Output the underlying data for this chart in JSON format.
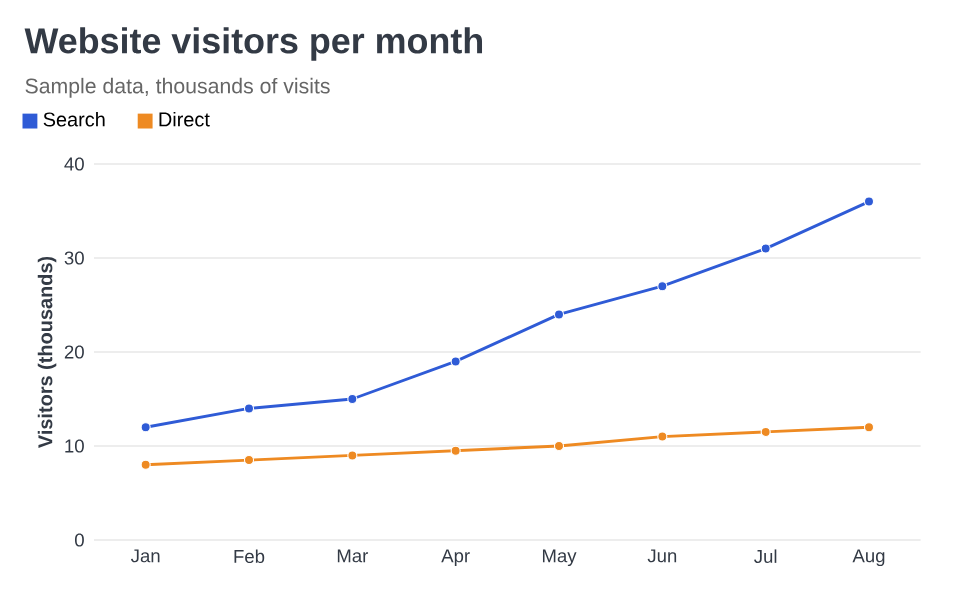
{
  "chart_data": {
    "type": "line",
    "title": "Website visitors per month",
    "subtitle": "Sample data, thousands of visits",
    "ylabel": "Visitors (thousands)",
    "categories": [
      "Jan",
      "Feb",
      "Mar",
      "Apr",
      "May",
      "Jun",
      "Jul",
      "Aug"
    ],
    "series": [
      {
        "name": "Search",
        "color": "#2f5bd6",
        "values": [
          12,
          14,
          15,
          19,
          24,
          27,
          31,
          36
        ]
      },
      {
        "name": "Direct",
        "color": "#ee8a22",
        "values": [
          8,
          8.5,
          9,
          9.5,
          10,
          11,
          11.5,
          12
        ]
      }
    ],
    "ylim": [
      0,
      40
    ],
    "yticks": [
      0,
      10,
      20,
      30,
      40
    ],
    "grid": "y",
    "legend": "top left",
    "marker": "circle",
    "line_style": "solid"
  }
}
